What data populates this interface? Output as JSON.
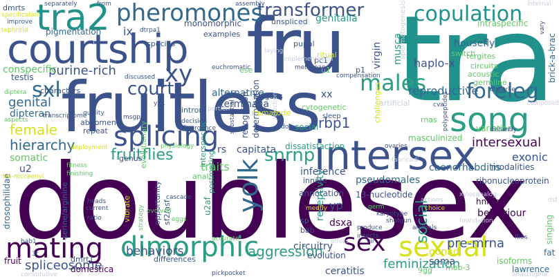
{
  "palette": {
    "dark_purple": "#440154",
    "indigo": "#3b528b",
    "navy": "#31688e",
    "teal": "#21918c",
    "green": "#2a9d82",
    "lime": "#5ec962",
    "yellow": "#d5e21a",
    "light": "#c9cfe0"
  },
  "words": [
    {
      "text": "doublesex",
      "color": "#440154"
    },
    {
      "text": "tra",
      "color": "#21918c"
    },
    {
      "text": "fruitless",
      "color": "#3b528b"
    },
    {
      "text": "fru",
      "color": "#3b528b"
    },
    {
      "text": "courtship",
      "color": "#3b528b"
    },
    {
      "text": "tra2",
      "color": "#21918c"
    },
    {
      "text": "pheromones",
      "color": "#31688e"
    },
    {
      "text": "copulation",
      "color": "#21918c"
    },
    {
      "text": "transformer",
      "color": "#3b528b"
    },
    {
      "text": "intersex",
      "color": "#3b528b"
    },
    {
      "text": "song",
      "color": "#2a9d82"
    },
    {
      "text": "mating",
      "color": "#440154"
    },
    {
      "text": "dimorphic",
      "color": "#2a9d82"
    },
    {
      "text": "sexual",
      "color": "#d5e21a"
    },
    {
      "text": "splicing",
      "color": "#3b528b"
    },
    {
      "text": "yolk",
      "color": "#31688e"
    },
    {
      "text": "xy",
      "color": "#3b528b"
    },
    {
      "text": "sxl",
      "color": "#31688e"
    },
    {
      "text": "court",
      "color": "#3b528b"
    },
    {
      "text": "males",
      "color": "#2a9d82"
    },
    {
      "text": "foreleg",
      "color": "#31688e"
    },
    {
      "text": "snrnp",
      "color": "#2a9d82"
    },
    {
      "text": "sex",
      "color": "#440154"
    },
    {
      "text": "purine-rich",
      "color": "#3b528b"
    },
    {
      "text": "female",
      "color": "#d5e21a"
    },
    {
      "text": "hierarchy",
      "color": "#31688e"
    },
    {
      "text": "fruitflies",
      "color": "#2a9d82"
    },
    {
      "text": "social",
      "color": "#2a9d82"
    },
    {
      "text": "intersexual",
      "color": "#440154"
    },
    {
      "text": "aggression",
      "color": "#2a9d82"
    },
    {
      "text": "behaviors",
      "color": "#3b528b"
    },
    {
      "text": "spliceosome",
      "color": "#3b528b"
    },
    {
      "text": "pre-mrna",
      "color": "#3b528b"
    },
    {
      "text": "feminization",
      "color": "#2a9d82"
    },
    {
      "text": "genital",
      "color": "#31688e"
    },
    {
      "text": "reproductive",
      "color": "#31688e"
    },
    {
      "text": "rbp1",
      "color": "#3b528b"
    },
    {
      "text": "genitalia",
      "color": "#2a9d82"
    },
    {
      "text": "pigmentation",
      "color": "#31688e"
    },
    {
      "text": "conspecific",
      "color": "#5ec962"
    },
    {
      "text": "monomorphic",
      "color": "#3b528b"
    },
    {
      "text": "alternative",
      "color": "#31688e"
    },
    {
      "text": "terminalia",
      "color": "#3b528b"
    },
    {
      "text": "dipteran",
      "color": "#31688e"
    },
    {
      "text": "somatic",
      "color": "#5ec962"
    },
    {
      "text": "traits",
      "color": "#5ec962"
    },
    {
      "text": "capitata",
      "color": "#3b528b"
    },
    {
      "text": "rs",
      "color": "#3b528b"
    },
    {
      "text": "dissatisfaction",
      "color": "#2a9d82"
    },
    {
      "text": "exonic",
      "color": "#3b528b"
    },
    {
      "text": "inference",
      "color": "#3b528b"
    },
    {
      "text": "annotation",
      "color": "#3b528b"
    },
    {
      "text": "13-nucleotide",
      "color": "#3b528b"
    },
    {
      "text": "behaviour",
      "color": "#440154"
    },
    {
      "text": "circuitry",
      "color": "#3b528b"
    },
    {
      "text": "gonad",
      "color": "#d5e21a"
    },
    {
      "text": "soma",
      "color": "#3b528b"
    },
    {
      "text": "ceratitis",
      "color": "#3b528b"
    },
    {
      "text": "evolution",
      "color": "#3b528b"
    },
    {
      "text": "pseudomales",
      "color": "#31688e"
    },
    {
      "text": "ix",
      "color": "#3b528b"
    },
    {
      "text": "yp",
      "color": "#3b528b"
    },
    {
      "text": "u2",
      "color": "#3b528b"
    },
    {
      "text": "xx",
      "color": "#3b528b"
    },
    {
      "text": "haplo-x",
      "color": "#3b528b"
    },
    {
      "text": "housefly",
      "color": "#31688e"
    },
    {
      "text": "musca",
      "color": "#2a9d82"
    },
    {
      "text": "virgin",
      "color": "#3b528b"
    },
    {
      "text": "tergites",
      "color": "#5ec962"
    },
    {
      "text": "circuits",
      "color": "#5ec962"
    },
    {
      "text": "acoustic",
      "color": "#5ec962"
    },
    {
      "text": "germline",
      "color": "#5ec962"
    },
    {
      "text": "variation",
      "color": "#5ec962"
    },
    {
      "text": "masculinized",
      "color": "#5ec962"
    },
    {
      "text": "rnas",
      "color": "#5ec962"
    },
    {
      "text": "caenorhabditis",
      "color": "#31688e"
    },
    {
      "text": "modalities",
      "color": "#3b528b"
    },
    {
      "text": "ribonucleoprotein",
      "color": "#3b528b"
    },
    {
      "text": "hnrnp",
      "color": "#440154"
    },
    {
      "text": "isoforms",
      "color": "#5ec962"
    },
    {
      "text": "lawrence",
      "color": "#31688e"
    },
    {
      "text": "mab-3",
      "color": "#5ec962"
    },
    {
      "text": "9gg",
      "color": "#5ec962"
    },
    {
      "text": "fat",
      "color": "#31688e"
    },
    {
      "text": "singing",
      "color": "#5ec962"
    },
    {
      "text": "intraspecific",
      "color": "#5ec962"
    },
    {
      "text": "brick-a-brac",
      "color": "#31688e"
    },
    {
      "text": "switch",
      "color": "#5ec962"
    },
    {
      "text": "spermatogenesis",
      "color": "#c9cfe0"
    },
    {
      "text": "evolutionary",
      "color": "#5ec962"
    },
    {
      "text": "interspecific",
      "color": "#2a9d82"
    },
    {
      "text": "determination",
      "color": "#3b528b"
    },
    {
      "text": "recognition",
      "color": "#3b528b"
    },
    {
      "text": "cytogenetic",
      "color": "#5ec962"
    },
    {
      "text": "elegans",
      "color": "#3b528b"
    },
    {
      "text": "dsxa",
      "color": "#440154"
    },
    {
      "text": "nematode",
      "color": "#d5e21a"
    },
    {
      "text": "artificial",
      "color": "#c9cfe0"
    },
    {
      "text": "challenges",
      "color": "#d5e21a"
    },
    {
      "text": "testis",
      "color": "#3b528b"
    },
    {
      "text": "characters",
      "color": "#3b528b"
    },
    {
      "text": "abdomen",
      "color": "#3b528b"
    },
    {
      "text": "repeat",
      "color": "#3b528b"
    },
    {
      "text": "genus",
      "color": "#3b528b"
    },
    {
      "text": "intron",
      "color": "#3b528b"
    },
    {
      "text": "u2af",
      "color": "#2a9d82"
    },
    {
      "text": "receptivity",
      "color": "#2a9d82"
    },
    {
      "text": "postmating",
      "color": "#2a9d82"
    },
    {
      "text": "sf2/asf",
      "color": "#3b528b"
    },
    {
      "text": "opportunity",
      "color": "#3b528b"
    },
    {
      "text": "drosophilidae",
      "color": "#31688e"
    },
    {
      "text": "vibrate",
      "color": "#d5e21a"
    },
    {
      "text": "serine/arginine",
      "color": "#31688e"
    },
    {
      "text": "domestica",
      "color": "#440154"
    },
    {
      "text": "dmrt1",
      "color": "#3b528b"
    },
    {
      "text": "differences",
      "color": "#3b528b"
    },
    {
      "text": "anal",
      "color": "#5ec962"
    },
    {
      "text": "innate",
      "color": "#3b528b"
    },
    {
      "text": "social",
      "color": "#2a9d82"
    },
    {
      "text": "fruit",
      "color": "#440154"
    },
    {
      "text": "pc1",
      "color": "#3b528b"
    },
    {
      "text": "u1",
      "color": "#5ec962"
    },
    {
      "text": "p1",
      "color": "#3b528b"
    },
    {
      "text": "species",
      "color": "#3b528b"
    },
    {
      "text": "unspliced",
      "color": "#3b528b"
    },
    {
      "text": "examples",
      "color": "#3b528b"
    },
    {
      "text": "pupal",
      "color": "#3b528b"
    },
    {
      "text": "ritual",
      "color": "#d5e21a"
    },
    {
      "text": "sleep",
      "color": "#3b528b"
    },
    {
      "text": "bab",
      "color": "#3b528b"
    },
    {
      "text": "sp",
      "color": "#31688e"
    },
    {
      "text": "dmrts",
      "color": "#3b528b"
    },
    {
      "text": "specification",
      "color": "#d5e21a"
    },
    {
      "text": "separately",
      "color": "#3b528b"
    },
    {
      "text": "from",
      "color": "#3b528b"
    },
    {
      "text": "assembly",
      "color": "#3b528b"
    },
    {
      "text": "improve",
      "color": "#3b528b"
    },
    {
      "text": "tephritid",
      "color": "#d5e21a"
    },
    {
      "text": "dtrpa1",
      "color": "#3b528b"
    },
    {
      "text": "transcriptome",
      "color": "#3b528b"
    },
    {
      "text": "quality",
      "color": "#3b528b"
    },
    {
      "text": "aspects",
      "color": "#5ec962"
    },
    {
      "text": "diptera",
      "color": "#5ec962"
    },
    {
      "text": "physiology",
      "color": "#5ec962"
    },
    {
      "text": "deployment",
      "color": "#d5e21a"
    },
    {
      "text": "fitness",
      "color": "#5ec962"
    },
    {
      "text": "finishing",
      "color": "#5ec962"
    },
    {
      "text": "heads",
      "color": "#3b528b"
    },
    {
      "text": "current",
      "color": "#3b528b"
    },
    {
      "text": "ratio",
      "color": "#3b528b"
    },
    {
      "text": "eggs",
      "color": "#5ec962"
    },
    {
      "text": "accurate",
      "color": "#5ec962"
    },
    {
      "text": "constitutive",
      "color": "#c9cfe0"
    },
    {
      "text": "pickpocket",
      "color": "#3b528b"
    },
    {
      "text": "cascade",
      "color": "#3b528b"
    },
    {
      "text": "medfly",
      "color": "#d5e21a"
    },
    {
      "text": "insects",
      "color": "#3b528b"
    },
    {
      "text": "produce",
      "color": "#3b528b"
    },
    {
      "text": "shotgun",
      "color": "#3b528b"
    },
    {
      "text": "animals",
      "color": "#3b528b"
    },
    {
      "text": "flies",
      "color": "#3b528b"
    },
    {
      "text": "anastrepha",
      "color": "#c9cfe0"
    },
    {
      "text": "foundation",
      "color": "#c9cfe0"
    },
    {
      "text": "dsf",
      "color": "#c9cfe0"
    },
    {
      "text": "choice",
      "color": "#d5e21a"
    },
    {
      "text": "actions",
      "color": "#c9cfe0"
    },
    {
      "text": "karyotype",
      "color": "#3b528b"
    },
    {
      "text": "germ",
      "color": "#5ec962"
    },
    {
      "text": "offers",
      "color": "#c9cfe0"
    },
    {
      "text": "vir",
      "color": "#3b528b"
    },
    {
      "text": "composed",
      "color": "#c9cfe0"
    },
    {
      "text": "underlie",
      "color": "#3b528b"
    },
    {
      "text": "cva",
      "color": "#3b528b"
    },
    {
      "text": "ovaries",
      "color": "#3b528b"
    },
    {
      "text": "distantly",
      "color": "#3b528b"
    },
    {
      "text": "polypeptides",
      "color": "#3b528b"
    },
    {
      "text": "euchromatic",
      "color": "#3b528b"
    },
    {
      "text": "metazoan",
      "color": "#3b528b"
    },
    {
      "text": "compensation",
      "color": "#3b528b"
    },
    {
      "text": "laying",
      "color": "#c9cfe0"
    },
    {
      "text": "implementation",
      "color": "#c9cfe0"
    },
    {
      "text": "ese",
      "color": "#5ec962"
    },
    {
      "text": "internal",
      "color": "#c9cfe0"
    },
    {
      "text": "vary",
      "color": "#3b528b"
    },
    {
      "text": "discussed",
      "color": "#3b528b"
    },
    {
      "text": "portion",
      "color": "#c9cfe0"
    },
    {
      "text": "decision",
      "color": "#3b528b"
    },
    {
      "text": "divergence",
      "color": "#3b528b"
    },
    {
      "text": "substantial",
      "color": "#3b528b"
    },
    {
      "text": "selection",
      "color": "#c9cfe0"
    },
    {
      "text": "doa",
      "color": "#3b528b"
    },
    {
      "text": "3r",
      "color": "#3b528b"
    },
    {
      "text": "bab1",
      "color": "#3b528b"
    },
    {
      "text": "msgps",
      "color": "#3b528b"
    },
    {
      "text": "yp1",
      "color": "#3b528b"
    },
    {
      "text": "evolved",
      "color": "#5ec962"
    },
    {
      "text": "strategy",
      "color": "#5ec962"
    },
    {
      "text": "tra-mccaenyl",
      "color": "#d5e21a"
    },
    {
      "text": "xylosanalog",
      "color": "#c9cfe0"
    },
    {
      "text": "fabricadi",
      "color": "#c9cfe0"
    }
  ]
}
